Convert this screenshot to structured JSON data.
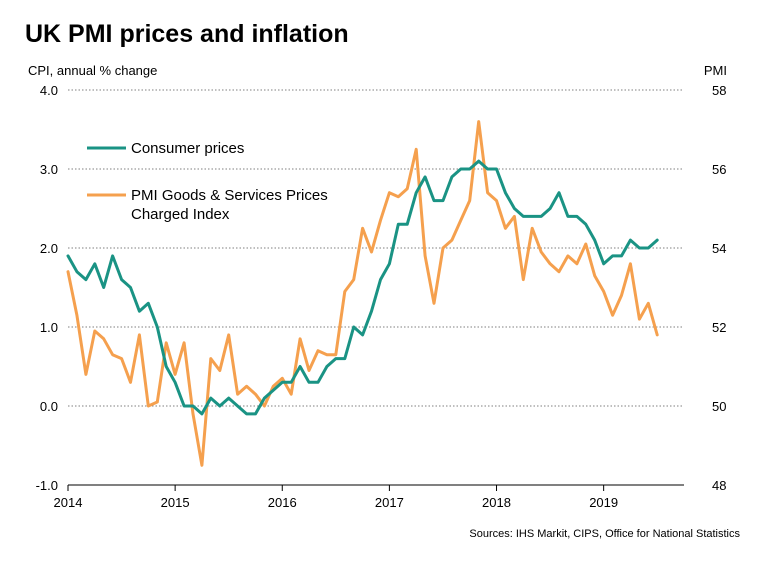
{
  "chart_data": {
    "type": "line",
    "title": "UK PMI prices and inflation",
    "left_axis_label": "CPI, annual % change",
    "right_axis_label": "PMI",
    "source": "Sources: IHS Markit, CIPS, Office for National Statistics",
    "y_left": {
      "min": -1.0,
      "max": 4.0,
      "ticks": [
        "-1.0",
        "0.0",
        "1.0",
        "2.0",
        "3.0",
        "4.0"
      ]
    },
    "y_right": {
      "min": 48,
      "max": 58,
      "ticks": [
        "48",
        "50",
        "52",
        "54",
        "56",
        "58"
      ]
    },
    "x_axis": {
      "start": 2014.0,
      "end": 2019.75,
      "ticks": [
        "2014",
        "2015",
        "2016",
        "2017",
        "2018",
        "2019"
      ]
    },
    "grid": "horizontal dotted",
    "legend": {
      "placement": "top-left"
    },
    "series": [
      {
        "name": "Consumer prices",
        "axis": "left",
        "color": "#1a9384",
        "start": "2014-01",
        "values": [
          1.9,
          1.7,
          1.6,
          1.8,
          1.5,
          1.9,
          1.6,
          1.5,
          1.2,
          1.3,
          1.0,
          0.5,
          0.3,
          0.0,
          0.0,
          -0.1,
          0.1,
          0.0,
          0.1,
          0.0,
          -0.1,
          -0.1,
          0.1,
          0.2,
          0.3,
          0.3,
          0.5,
          0.3,
          0.3,
          0.5,
          0.6,
          0.6,
          1.0,
          0.9,
          1.2,
          1.6,
          1.8,
          2.3,
          2.3,
          2.7,
          2.9,
          2.6,
          2.6,
          2.9,
          3.0,
          3.0,
          3.1,
          3.0,
          3.0,
          2.7,
          2.5,
          2.4,
          2.4,
          2.4,
          2.5,
          2.7,
          2.4,
          2.4,
          2.3,
          2.1,
          1.8,
          1.9,
          1.9,
          2.1,
          2.0,
          2.0,
          2.1
        ]
      },
      {
        "name": "PMI Goods & Services Prices Charged Index",
        "legend_lines": [
          "PMI Goods & Services Prices",
          "Charged Index"
        ],
        "axis": "right",
        "color": "#f5a04e",
        "start": "2014-01",
        "values": [
          53.4,
          52.3,
          50.8,
          51.9,
          51.7,
          51.3,
          51.2,
          50.6,
          51.8,
          50.0,
          50.1,
          51.6,
          50.8,
          51.6,
          49.8,
          48.5,
          51.2,
          50.9,
          51.8,
          50.3,
          50.5,
          50.3,
          50.0,
          50.5,
          50.7,
          50.3,
          51.7,
          50.9,
          51.4,
          51.3,
          51.3,
          52.9,
          53.2,
          54.5,
          53.9,
          54.7,
          55.4,
          55.3,
          55.5,
          56.5,
          53.8,
          52.6,
          54.0,
          54.2,
          54.7,
          55.2,
          57.2,
          55.4,
          55.2,
          54.5,
          54.8,
          53.2,
          54.5,
          53.9,
          53.6,
          53.4,
          53.8,
          53.6,
          54.1,
          53.3,
          52.9,
          52.3,
          52.8,
          53.6,
          52.2,
          52.6,
          51.8
        ]
      }
    ]
  }
}
